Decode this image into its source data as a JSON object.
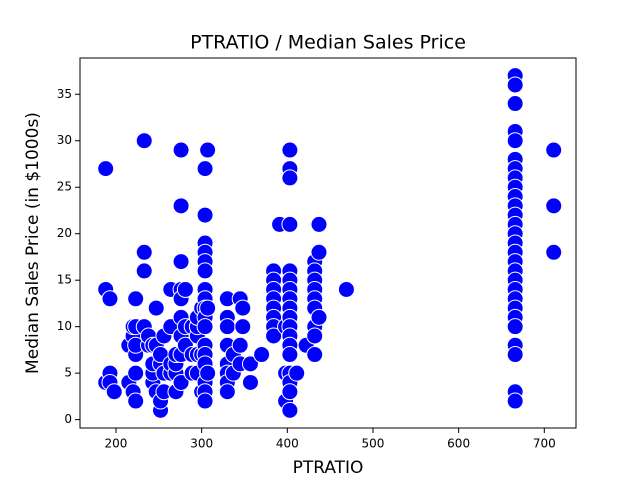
{
  "chart_data": {
    "type": "scatter",
    "title": "PTRATIO / Median Sales Price",
    "x_label": "PTRATIO",
    "y_label": "Median Sales Price (in $1000s)",
    "color": "blue",
    "x": [
      188,
      188,
      188,
      193,
      193,
      193,
      198,
      215,
      215,
      220,
      220,
      220,
      223,
      223,
      223,
      223,
      223,
      223,
      233,
      233,
      233,
      233,
      238,
      238,
      243,
      243,
      243,
      243,
      247,
      247,
      247,
      252,
      252,
      252,
      252,
      256,
      256,
      256,
      264,
      264,
      264,
      264,
      270,
      270,
      270,
      270,
      276,
      276,
      276,
      276,
      276,
      276,
      276,
      276,
      276,
      281,
      281,
      281,
      289,
      289,
      289,
      295,
      295,
      295,
      295,
      295,
      300,
      300,
      300,
      304,
      304,
      304,
      304,
      304,
      304,
      304,
      304,
      304,
      304,
      304,
      304,
      304,
      304,
      304,
      304,
      304,
      307,
      307,
      307,
      330,
      330,
      330,
      330,
      330,
      330,
      330,
      330,
      337,
      337,
      345,
      345,
      345,
      348,
      348,
      357,
      357,
      370,
      384,
      384,
      384,
      384,
      384,
      384,
      384,
      384,
      391,
      398,
      398,
      398,
      403,
      403,
      403,
      403,
      403,
      403,
      403,
      403,
      403,
      403,
      403,
      403,
      403,
      403,
      403,
      403,
      403,
      403,
      411,
      422,
      432,
      432,
      432,
      432,
      432,
      432,
      432,
      432,
      432,
      437,
      437,
      437,
      469,
      666,
      666,
      666,
      666,
      666,
      666,
      666,
      666,
      666,
      666,
      666,
      666,
      666,
      666,
      666,
      666,
      666,
      666,
      666,
      666,
      666,
      666,
      666,
      666,
      666,
      666,
      666,
      666,
      711,
      711,
      711
    ],
    "values": [
      27,
      14,
      4,
      13,
      5,
      4,
      3,
      4,
      8,
      3,
      9,
      10,
      2,
      5,
      7,
      10,
      13,
      8,
      30,
      18,
      16,
      10,
      8,
      9,
      4,
      5,
      6,
      8,
      12,
      8,
      3,
      1,
      2,
      6,
      7,
      3,
      5,
      9,
      5,
      6,
      10,
      14,
      5,
      6,
      7,
      3,
      29,
      23,
      17,
      14,
      13,
      11,
      9,
      7,
      4,
      8,
      14,
      10,
      7,
      10,
      5,
      5,
      7,
      9,
      10,
      11,
      3,
      7,
      12,
      27,
      22,
      19,
      18,
      17,
      16,
      14,
      13,
      12,
      11,
      10,
      8,
      7,
      6,
      4,
      3,
      2,
      29,
      12,
      5,
      13,
      11,
      10,
      8,
      6,
      5,
      4,
      3,
      7,
      5,
      13,
      8,
      6,
      12,
      10,
      4,
      6,
      7,
      16,
      15,
      14,
      13,
      12,
      11,
      10,
      9,
      21,
      10,
      5,
      2,
      29,
      27,
      26,
      21,
      16,
      15,
      14,
      13,
      12,
      11,
      10,
      9,
      8,
      7,
      5,
      4,
      3,
      1,
      5,
      8,
      17,
      16,
      15,
      14,
      13,
      12,
      10,
      9,
      7,
      21,
      18,
      11,
      14,
      37,
      36,
      34,
      31,
      30,
      28,
      27,
      26,
      25,
      24,
      23,
      22,
      21,
      20,
      19,
      18,
      17,
      16,
      15,
      14,
      13,
      12,
      11,
      10,
      8,
      7,
      3,
      2,
      29,
      23,
      18
    ],
    "xlim": [
      158,
      737
    ],
    "ylim": [
      -0.9,
      38.9
    ],
    "xticks": [
      200,
      300,
      400,
      500,
      600,
      700
    ],
    "yticks": [
      0,
      5,
      10,
      15,
      20,
      25,
      30,
      35
    ]
  }
}
